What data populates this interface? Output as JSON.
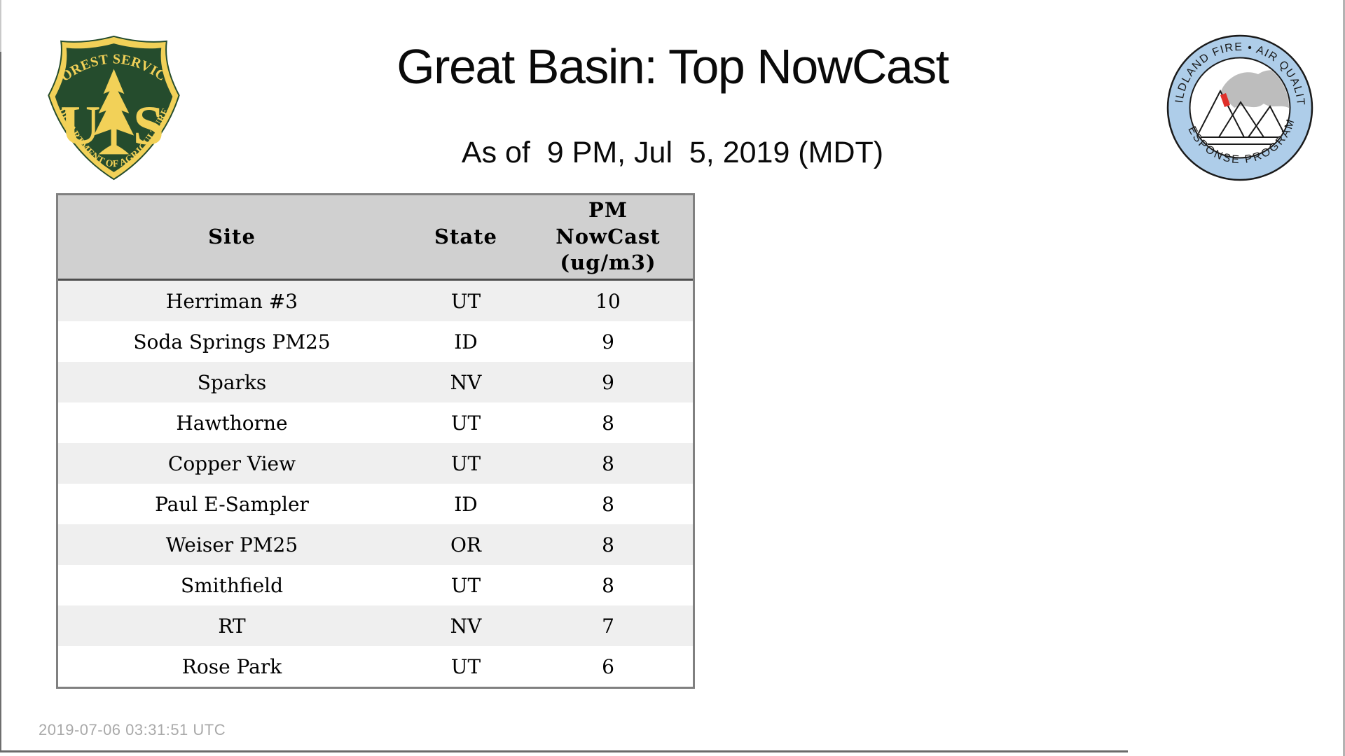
{
  "page": {
    "title": "Great Basin: Top NowCast",
    "subtitle": "As of  9 PM, Jul  5, 2019 (MDT)",
    "footer_timestamp": "2019-07-06 03:31:51 UTC"
  },
  "logos": {
    "forest_service": {
      "alt": "US Forest Service shield",
      "top_arc": "FOREST SERVICE",
      "left_letter": "U",
      "right_letter": "S",
      "bottom_arc": "DEPARTMENT OF AGRICULTURE",
      "colors": {
        "green": "#254c2d",
        "yellow": "#f2d158"
      }
    },
    "air_quality": {
      "alt": "Wildland Fire Air Quality Response Program",
      "top_arc": "WILDLAND FIRE • AIR QUALITY",
      "bottom_arc": "RESPONSE PROGRAM",
      "colors": {
        "ring": "#aecde9",
        "smoke": "#bdbdbd",
        "fire": "#e0302a",
        "outline": "#1a1a1a"
      }
    }
  },
  "table": {
    "columns": [
      {
        "key": "site",
        "label": "Site"
      },
      {
        "key": "state",
        "label": "State"
      },
      {
        "key": "pm",
        "label": "PM\nNowCast\n(ug/m3)"
      }
    ],
    "rows": [
      {
        "site": "Herriman #3",
        "state": "UT",
        "pm": "10"
      },
      {
        "site": "Soda Springs PM25",
        "state": "ID",
        "pm": "9"
      },
      {
        "site": "Sparks",
        "state": "NV",
        "pm": "9"
      },
      {
        "site": "Hawthorne",
        "state": "UT",
        "pm": "8"
      },
      {
        "site": "Copper View",
        "state": "UT",
        "pm": "8"
      },
      {
        "site": "Paul E-Sampler",
        "state": "ID",
        "pm": "8"
      },
      {
        "site": "Weiser PM25",
        "state": "OR",
        "pm": "8"
      },
      {
        "site": "Smithfield",
        "state": "UT",
        "pm": "8"
      },
      {
        "site": "RT",
        "state": "NV",
        "pm": "7"
      },
      {
        "site": "Rose Park",
        "state": "UT",
        "pm": "6"
      }
    ],
    "style": {
      "header_bg": "#d0d0d0",
      "stripe_bg": "#efefef",
      "outer_border": "#808080",
      "header_rule": "#4d4d4d"
    }
  },
  "chart_data": {
    "type": "table",
    "title": "Great Basin: Top NowCast",
    "subtitle": "As of  9 PM, Jul  5, 2019 (MDT)",
    "columns": [
      "Site",
      "State",
      "PM NowCast (ug/m3)"
    ],
    "rows": [
      [
        "Herriman #3",
        "UT",
        10
      ],
      [
        "Soda Springs PM25",
        "ID",
        9
      ],
      [
        "Sparks",
        "NV",
        9
      ],
      [
        "Hawthorne",
        "UT",
        8
      ],
      [
        "Copper View",
        "UT",
        8
      ],
      [
        "Paul E-Sampler",
        "ID",
        8
      ],
      [
        "Weiser PM25",
        "OR",
        8
      ],
      [
        "Smithfield",
        "UT",
        8
      ],
      [
        "RT",
        "NV",
        7
      ],
      [
        "Rose Park",
        "UT",
        6
      ]
    ],
    "footnote": "2019-07-06 03:31:51 UTC"
  }
}
